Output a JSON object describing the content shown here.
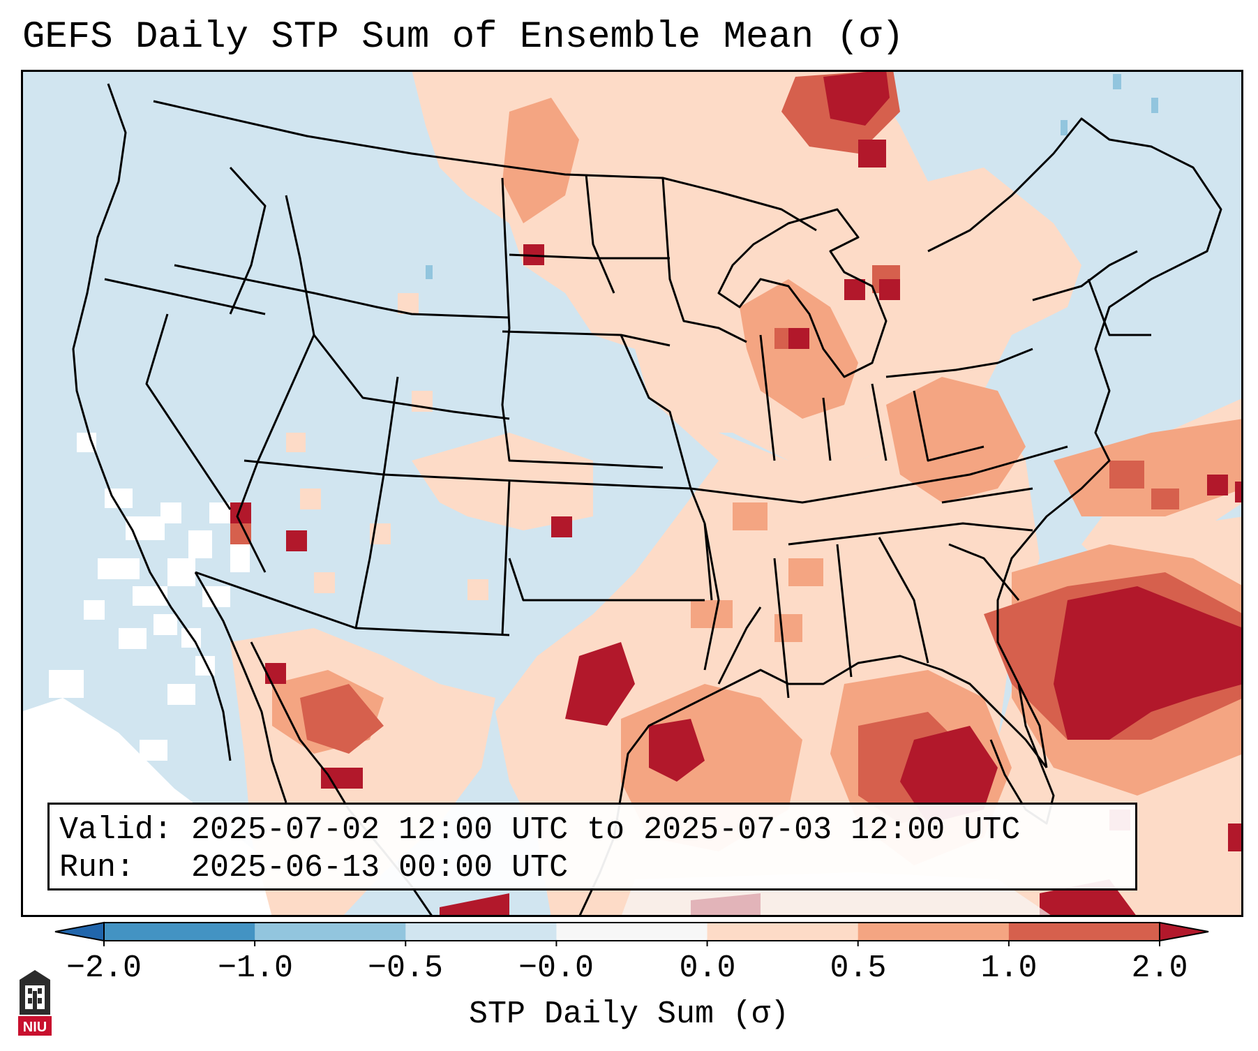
{
  "title": "GEFS Daily STP Sum of Ensemble Mean (σ)",
  "map": {
    "region": "Continental United States",
    "colors": {
      "ocean": "#d1e5f0",
      "land_base": "#d1e5f0",
      "near_zero_white": "#ffffff",
      "low": "#fddbc7",
      "mid": "#f4a582",
      "high": "#d6604d",
      "very_high": "#b2182b",
      "negative_light": "#92c5de",
      "negative_mid": "#4393c3",
      "negative_strong": "#2166ac"
    }
  },
  "info": {
    "valid_line": "Valid: 2025-07-02 12:00 UTC to 2025-07-03 12:00 UTC",
    "run_line": "Run:   2025-06-13 00:00 UTC"
  },
  "colorbar": {
    "label": "STP Daily Sum (σ)",
    "ticks": [
      "−2.0",
      "−1.0",
      "−0.5",
      "−0.0",
      "0.0",
      "0.5",
      "1.0",
      "2.0"
    ],
    "bins": [
      "#2166ac",
      "#4393c3",
      "#92c5de",
      "#d1e5f0",
      "#f7f7f7",
      "#fddbc7",
      "#f4a582",
      "#d6604d",
      "#b2182b"
    ]
  },
  "logo": {
    "text": "NIU",
    "color": "#c8102e"
  }
}
